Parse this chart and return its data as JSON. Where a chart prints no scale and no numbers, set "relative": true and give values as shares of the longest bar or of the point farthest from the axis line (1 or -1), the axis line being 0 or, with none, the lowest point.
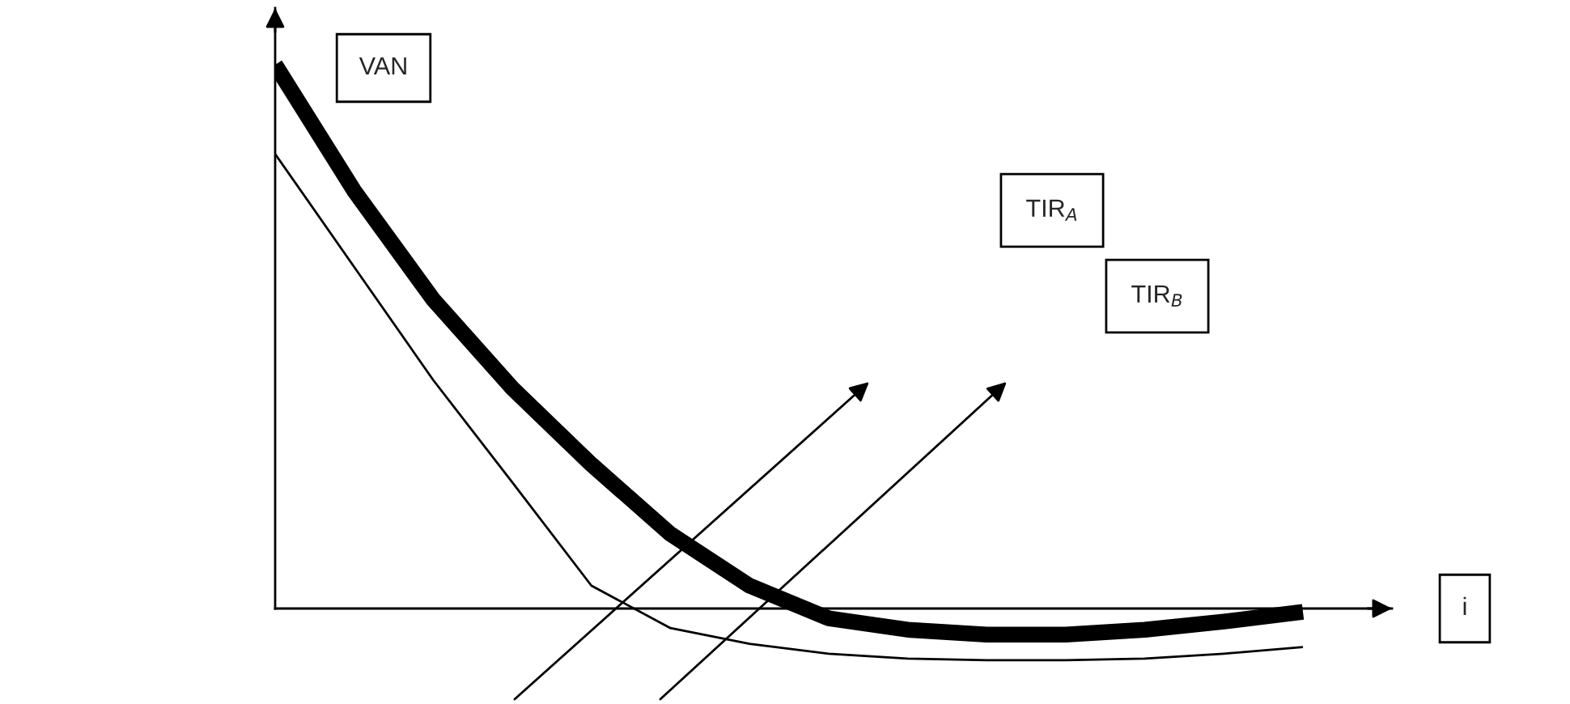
{
  "chart_data": {
    "type": "line",
    "relative": true,
    "xlabel": "i",
    "ylabel": "VAN",
    "categories": [
      null,
      null,
      null,
      null,
      null,
      null,
      null,
      null,
      null,
      null,
      null,
      null,
      null,
      null
    ],
    "series": [
      {
        "color": "#000000",
        "values": [
          1.0,
          0.768,
          0.568,
          0.405,
          0.265,
          0.137,
          0.042,
          -0.018,
          -0.039,
          -0.048,
          -0.048,
          -0.039,
          -0.024,
          -0.006
        ]
      },
      {
        "color": "#000000",
        "values": [
          0.836,
          0.628,
          0.42,
          0.232,
          0.042,
          -0.036,
          -0.065,
          -0.083,
          -0.092,
          -0.095,
          -0.095,
          -0.092,
          -0.083,
          -0.071
        ]
      }
    ],
    "annotations": [
      "TIR$_{A}$",
      "TIR$_{B}$"
    ]
  }
}
